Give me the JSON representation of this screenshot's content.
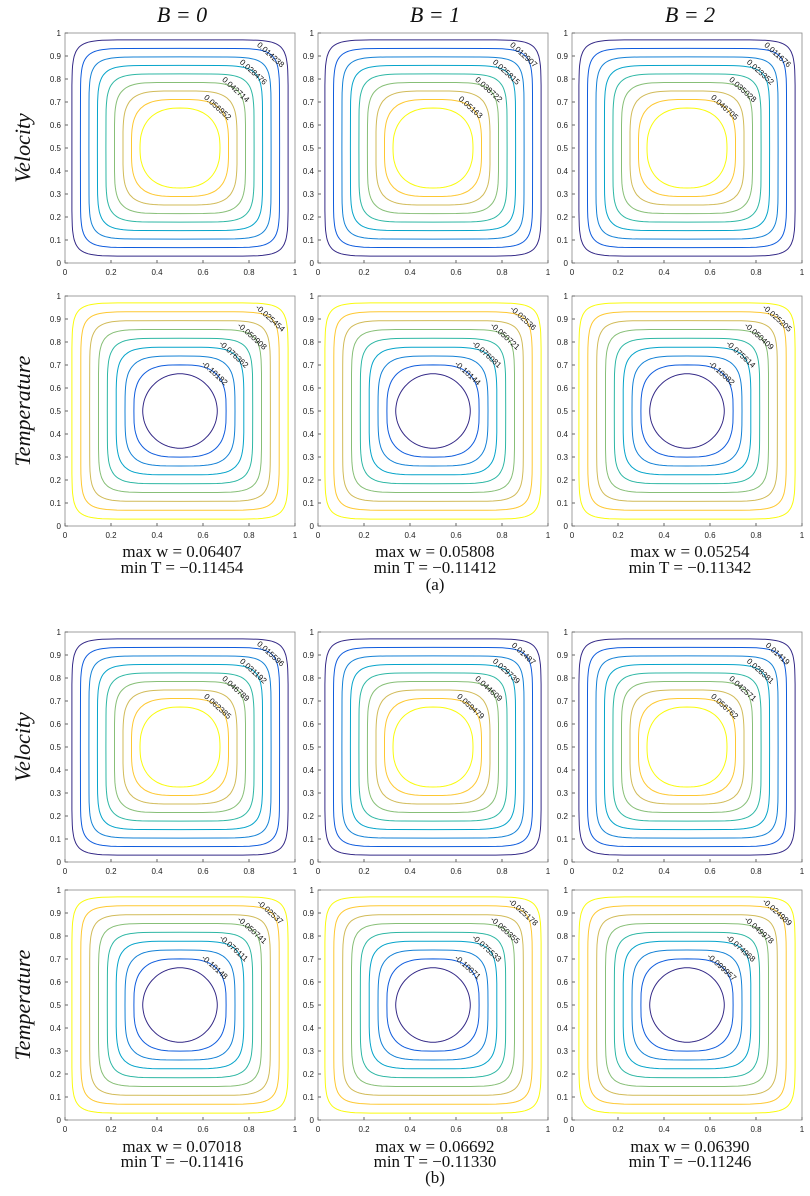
{
  "column_headers": [
    "B = 0",
    "B = 1",
    "B = 2"
  ],
  "row_labels": [
    "Velocity",
    "Temperature"
  ],
  "axes": {
    "xticks": [
      0,
      0.2,
      0.4,
      0.6,
      0.8,
      1
    ],
    "yticks": [
      0,
      0.1,
      0.2,
      0.3,
      0.4,
      0.5,
      0.6,
      0.7,
      0.8,
      0.9,
      1
    ]
  },
  "parts": [
    {
      "label": "(a)",
      "columns": [
        {
          "velocity_contours": [
            0.014238,
            0.028476,
            0.042714,
            0.056952
          ],
          "temperature_contours": [
            -0.025454,
            -0.050908,
            -0.076362,
            -0.10182
          ],
          "max_w": "max w = 0.06407",
          "min_T": "min T = −0.11454"
        },
        {
          "velocity_contours": [
            0.012907,
            0.025815,
            0.038722,
            0.05163
          ],
          "temperature_contours": [
            -0.02536,
            -0.050721,
            -0.076081,
            -0.10144
          ],
          "max_w": "max w = 0.05808",
          "min_T": "min T = −0.11412"
        },
        {
          "velocity_contours": [
            0.011676,
            0.023352,
            0.035028,
            0.046705
          ],
          "temperature_contours": [
            -0.025205,
            -0.050409,
            -0.075614,
            -0.10082
          ],
          "max_w": "max w = 0.05254",
          "min_T": "min T = −0.11342"
        }
      ]
    },
    {
      "label": "(b)",
      "columns": [
        {
          "velocity_contours": [
            0.015596,
            0.031192,
            0.046789,
            0.062385
          ],
          "temperature_contours": [
            -0.02537,
            -0.050741,
            -0.076111,
            -0.10148
          ],
          "max_w": "max w = 0.07018",
          "min_T": "min T = −0.11416"
        },
        {
          "velocity_contours": [
            0.01487,
            0.029739,
            0.044609,
            0.059479
          ],
          "temperature_contours": [
            -0.025178,
            -0.050355,
            -0.075533,
            -0.10071
          ],
          "max_w": "max w = 0.06692",
          "min_T": "min T = −0.11330"
        },
        {
          "velocity_contours": [
            0.01419,
            0.028381,
            0.042571,
            0.056762
          ],
          "temperature_contours": [
            -0.024989,
            -0.049978,
            -0.074968,
            -0.099957
          ],
          "max_w": "max w = 0.06390",
          "min_T": "min T = −0.11246"
        }
      ]
    }
  ]
}
